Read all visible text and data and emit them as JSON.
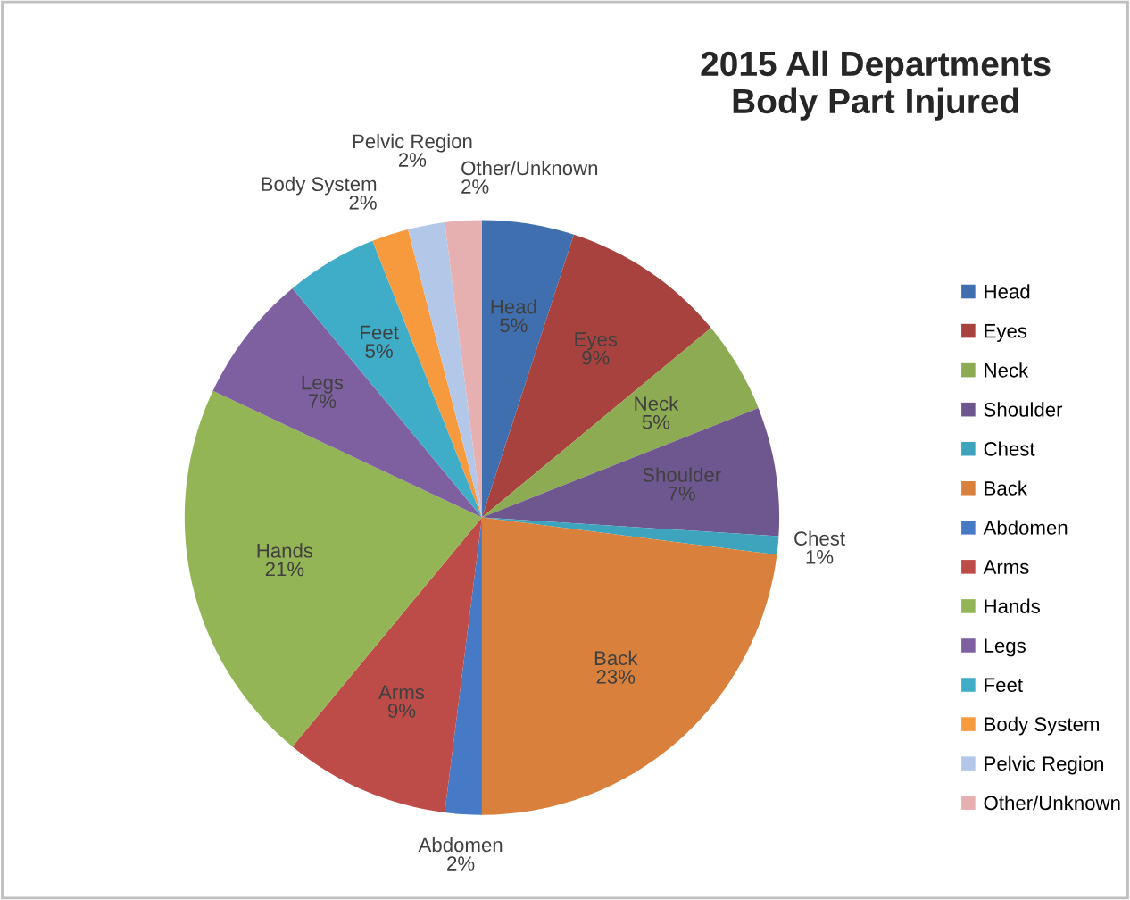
{
  "chart_data": {
    "type": "pie",
    "title": "2015 All Departments\nBody Part Injured",
    "categories": [
      "Head",
      "Eyes",
      "Neck",
      "Shoulder",
      "Chest",
      "Back",
      "Abdomen",
      "Arms",
      "Hands",
      "Legs",
      "Feet",
      "Body System",
      "Pelvic Region",
      "Other/Unknown"
    ],
    "values": [
      5,
      9,
      5,
      7,
      1,
      23,
      2,
      9,
      21,
      7,
      5,
      2,
      2,
      2
    ],
    "value_labels": [
      "5%",
      "9%",
      "5%",
      "7%",
      "1%",
      "23%",
      "2%",
      "9%",
      "21%",
      "7%",
      "5%",
      "2%",
      "2%",
      "2%"
    ],
    "colors": [
      "#3f6fae",
      "#a8423f",
      "#8cab52",
      "#6e568e",
      "#3ea4bd",
      "#d9803c",
      "#4679c6",
      "#bd4b48",
      "#94b555",
      "#7e60a1",
      "#3fadc8",
      "#f79a3e",
      "#b3c8e8",
      "#e7b0b0"
    ],
    "legend": "right"
  }
}
